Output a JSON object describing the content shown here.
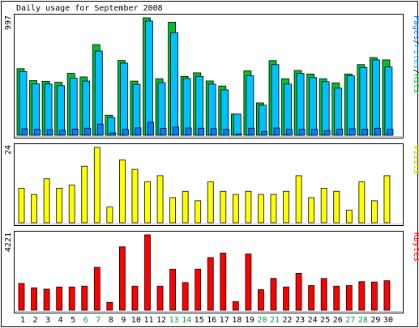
{
  "chart_data": {
    "type": "bar",
    "title": "Daily usage for September 2008",
    "categories": [
      "1",
      "2",
      "3",
      "4",
      "5",
      "6",
      "7",
      "8",
      "9",
      "10",
      "11",
      "12",
      "13",
      "14",
      "15",
      "16",
      "17",
      "18",
      "19",
      "20",
      "21",
      "22",
      "23",
      "24",
      "25",
      "26",
      "27",
      "28",
      "29",
      "30"
    ],
    "weekend_days": [
      "6",
      "7",
      "13",
      "14",
      "20",
      "21",
      "27",
      "28"
    ],
    "colors": {
      "hits": "#00c030",
      "files": "#00c0ff",
      "pages": "#0080ff",
      "visits": "#ffff00",
      "kbytes": "#ff0000",
      "weekday_label": "#000000",
      "weekend_label": "#00a040"
    },
    "panels": [
      {
        "name": "pages-files-hits",
        "ymax_label": "997",
        "ylim": [
          0,
          997
        ],
        "legend": [
          {
            "text": "Pages",
            "color": "#0080ff"
          },
          {
            "text": "/",
            "color": "#000000"
          },
          {
            "text": "Files",
            "color": "#00c0ff"
          },
          {
            "text": "/",
            "color": "#000000"
          },
          {
            "text": "Hits",
            "color": "#00c030"
          }
        ],
        "series": [
          {
            "name": "Hits",
            "color": "#00c030",
            "values": [
              565,
              464,
              458,
              450,
              526,
              495,
              770,
              170,
              635,
              460,
              997,
              480,
              960,
              500,
              530,
              461,
              418,
              180,
              547,
              275,
              634,
              480,
              550,
              520,
              480,
              445,
              520,
              600,
              660,
              640
            ]
          },
          {
            "name": "Files",
            "color": "#00c0ff",
            "values": [
              540,
              437,
              435,
              421,
              485,
              460,
              715,
              150,
              612,
              432,
              970,
              447,
              870,
              482,
              500,
              434,
              385,
              180,
              505,
              255,
              600,
              435,
              525,
              490,
              455,
              400,
              505,
              575,
              640,
              580
            ]
          },
          {
            "name": "Pages",
            "color": "#0080ff",
            "values": [
              55,
              50,
              48,
              42,
              53,
              60,
              95,
              20,
              50,
              63,
              110,
              58,
              69,
              62,
              60,
              56,
              50,
              10,
              60,
              32,
              62,
              50,
              52,
              50,
              40,
              52,
              55,
              52,
              60,
              50
            ]
          }
        ]
      },
      {
        "name": "visits",
        "ymax_label": "24",
        "ylim": [
          0,
          24
        ],
        "legend": [
          {
            "text": "Visits",
            "color": "#ffff00"
          }
        ],
        "series": [
          {
            "name": "Visits",
            "color": "#ffff00",
            "values": [
              11,
              9,
              14,
              11,
              12,
              18,
              24,
              5,
              20,
              17,
              13,
              15,
              8,
              10,
              7,
              13,
              10,
              9,
              10,
              9,
              9,
              10,
              15,
              8,
              11,
              10,
              4,
              13,
              7,
              15
            ]
          }
        ]
      },
      {
        "name": "kbytes",
        "ymax_label": "4221",
        "ylim": [
          0,
          4221
        ],
        "legend": [
          {
            "text": "KBytes",
            "color": "#ff0000"
          }
        ],
        "series": [
          {
            "name": "KBytes",
            "color": "#ff0000",
            "values": [
              1500,
              1250,
              1180,
              1300,
              1300,
              1350,
              2400,
              440,
              3550,
              1350,
              4221,
              1350,
              2300,
              1550,
              2300,
              2950,
              3200,
              480,
              3150,
              1150,
              1780,
              1300,
              2070,
              1380,
              1780,
              1350,
              1380,
              1600,
              1580,
              1650
            ]
          }
        ]
      }
    ]
  }
}
